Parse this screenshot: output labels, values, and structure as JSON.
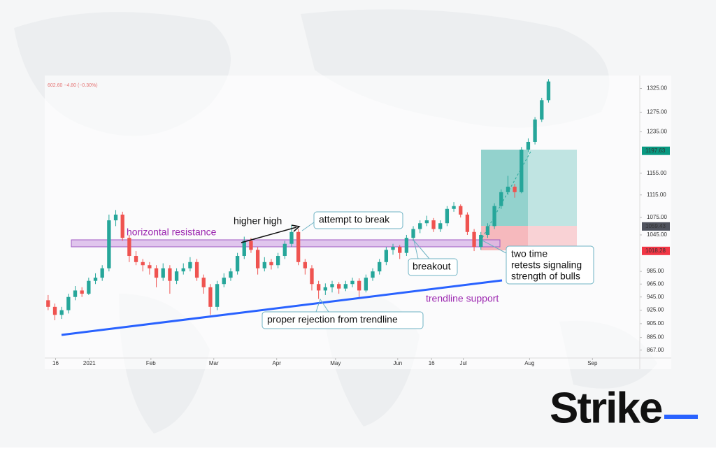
{
  "chart_data": {
    "type": "candlestick",
    "header_text": "602.60  −4.80 (−0.30%)",
    "log_scale": true,
    "up_color": "#26a69a",
    "down_color": "#ef5350",
    "xlim": [
      0,
      88
    ],
    "xticks": [
      {
        "value": 1.6,
        "label": "16"
      },
      {
        "value": 6.6,
        "label": "2021"
      },
      {
        "value": 15.7,
        "label": "Feb"
      },
      {
        "value": 25,
        "label": "Mar"
      },
      {
        "value": 34.3,
        "label": "Apr"
      },
      {
        "value": 43,
        "label": "May"
      },
      {
        "value": 52.2,
        "label": "Jun"
      },
      {
        "value": 57.2,
        "label": "16"
      },
      {
        "value": 61.9,
        "label": "Jul"
      },
      {
        "value": 71.7,
        "label": "Aug"
      },
      {
        "value": 81,
        "label": "Sep"
      }
    ],
    "ylim": [
      856,
      1350
    ],
    "yticks": [
      {
        "value": 867,
        "label": "867.00"
      },
      {
        "value": 885,
        "label": "885.00"
      },
      {
        "value": 905,
        "label": "905.00"
      },
      {
        "value": 925,
        "label": "925.00"
      },
      {
        "value": 945,
        "label": "945.00"
      },
      {
        "value": 965,
        "label": "965.00"
      },
      {
        "value": 985,
        "label": "985.00"
      },
      {
        "value": 1045,
        "label": "1045.00"
      },
      {
        "value": 1075,
        "label": "1075.00"
      },
      {
        "value": 1115,
        "label": "1115.00"
      },
      {
        "value": 1155,
        "label": "1155.00"
      },
      {
        "value": 1235,
        "label": "1235.00"
      },
      {
        "value": 1275,
        "label": "1275.00"
      },
      {
        "value": 1325,
        "label": "1325.00"
      }
    ],
    "price_labels": [
      {
        "value": 1197.63,
        "label": "1197.63",
        "color": "#089981"
      },
      {
        "value": 1059.43,
        "label": "1059.43",
        "color": "#50535e"
      },
      {
        "value": 1018.28,
        "label": "1018.28",
        "color": "#f23645"
      }
    ],
    "candles": [
      [
        940,
        948,
        925,
        930
      ],
      [
        930,
        935,
        910,
        918
      ],
      [
        918,
        930,
        912,
        925
      ],
      [
        925,
        950,
        920,
        945
      ],
      [
        945,
        962,
        940,
        955
      ],
      [
        955,
        960,
        945,
        950
      ],
      [
        950,
        975,
        948,
        970
      ],
      [
        970,
        982,
        965,
        975
      ],
      [
        975,
        995,
        970,
        990
      ],
      [
        990,
        1080,
        985,
        1070
      ],
      [
        1070,
        1088,
        1060,
        1080
      ],
      [
        1080,
        1085,
        1035,
        1040
      ],
      [
        1040,
        1045,
        1000,
        1010
      ],
      [
        1010,
        1018,
        995,
        1000
      ],
      [
        1000,
        1005,
        985,
        995
      ],
      [
        995,
        1000,
        980,
        990
      ],
      [
        990,
        995,
        960,
        975
      ],
      [
        975,
        998,
        970,
        990
      ],
      [
        990,
        995,
        950,
        970
      ],
      [
        970,
        990,
        965,
        985
      ],
      [
        985,
        998,
        980,
        990
      ],
      [
        990,
        1008,
        985,
        1000
      ],
      [
        1000,
        1005,
        970,
        975
      ],
      [
        975,
        980,
        950,
        960
      ],
      [
        960,
        965,
        918,
        930
      ],
      [
        930,
        970,
        925,
        965
      ],
      [
        965,
        982,
        960,
        975
      ],
      [
        975,
        990,
        970,
        985
      ],
      [
        985,
        1015,
        980,
        1010
      ],
      [
        1010,
        1042,
        1005,
        1035
      ],
      [
        1035,
        1040,
        1015,
        1020
      ],
      [
        1020,
        1025,
        980,
        990
      ],
      [
        990,
        1008,
        985,
        1000
      ],
      [
        1000,
        1005,
        988,
        995
      ],
      [
        995,
        1015,
        990,
        1010
      ],
      [
        1010,
        1035,
        1005,
        1030
      ],
      [
        1030,
        1062,
        1025,
        1050
      ],
      [
        1050,
        1055,
        995,
        1000
      ],
      [
        1000,
        1005,
        980,
        990
      ],
      [
        990,
        995,
        955,
        965
      ],
      [
        965,
        970,
        942,
        955
      ],
      [
        955,
        966,
        948,
        960
      ],
      [
        960,
        970,
        952,
        965
      ],
      [
        965,
        968,
        950,
        958
      ],
      [
        958,
        970,
        954,
        965
      ],
      [
        965,
        975,
        960,
        970
      ],
      [
        970,
        974,
        945,
        955
      ],
      [
        955,
        980,
        952,
        975
      ],
      [
        975,
        990,
        970,
        985
      ],
      [
        985,
        1005,
        980,
        1000
      ],
      [
        1000,
        1025,
        995,
        1020
      ],
      [
        1020,
        1030,
        1012,
        1025
      ],
      [
        1025,
        1028,
        1005,
        1015
      ],
      [
        1015,
        1045,
        1010,
        1040
      ],
      [
        1040,
        1060,
        1035,
        1055
      ],
      [
        1055,
        1070,
        1048,
        1065
      ],
      [
        1065,
        1078,
        1060,
        1070
      ],
      [
        1070,
        1074,
        1050,
        1055
      ],
      [
        1055,
        1070,
        1050,
        1065
      ],
      [
        1065,
        1095,
        1060,
        1090
      ],
      [
        1090,
        1102,
        1085,
        1095
      ],
      [
        1095,
        1098,
        1075,
        1080
      ],
      [
        1080,
        1084,
        1045,
        1050
      ],
      [
        1050,
        1055,
        1018,
        1025
      ],
      [
        1025,
        1050,
        1020,
        1045
      ],
      [
        1045,
        1065,
        1040,
        1060
      ],
      [
        1060,
        1100,
        1055,
        1095
      ],
      [
        1095,
        1125,
        1090,
        1120
      ],
      [
        1120,
        1150,
        1115,
        1130
      ],
      [
        1130,
        1135,
        1110,
        1120
      ],
      [
        1120,
        1205,
        1118,
        1200
      ],
      [
        1200,
        1222,
        1195,
        1215
      ],
      [
        1215,
        1265,
        1210,
        1260
      ],
      [
        1260,
        1305,
        1255,
        1300
      ],
      [
        1300,
        1345,
        1295,
        1340
      ]
    ],
    "annotations": {
      "resistance": "horizontal resistance",
      "higher_high": "higher high",
      "attempt": "attempt to break",
      "breakout": "breakout",
      "retests": [
        "two time",
        "retests signaling",
        "strength of bulls"
      ],
      "trendline": "trendline support",
      "rejection": "proper rejection from trendline"
    },
    "brand": "Strike"
  }
}
